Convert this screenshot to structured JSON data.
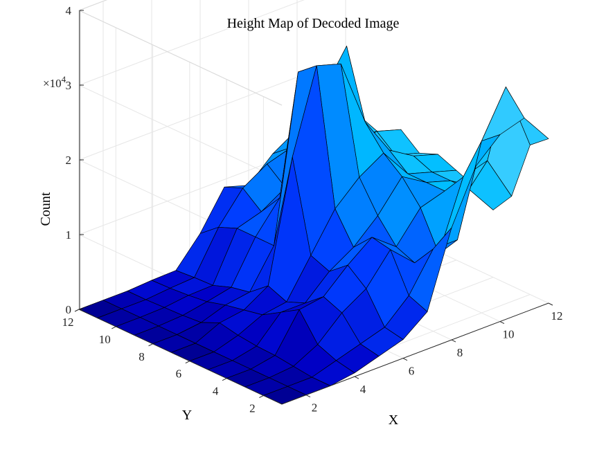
{
  "chart_data": {
    "type": "surface",
    "title": "Height Map of Decoded Image",
    "xlabel": "X",
    "ylabel": "Y",
    "zlabel": "Count",
    "z_exponent_base": "×10",
    "z_exponent": "4",
    "xlim": [
      1,
      12
    ],
    "ylim": [
      1,
      12
    ],
    "zlim": [
      0,
      40000
    ],
    "x_ticks": [
      "2",
      "4",
      "6",
      "8",
      "10",
      "12"
    ],
    "y_ticks": [
      "2",
      "4",
      "6",
      "8",
      "10",
      "12"
    ],
    "z_ticks": [
      "0",
      "1",
      "2",
      "3",
      "4"
    ],
    "grid": true,
    "colormap": "blue-cyan",
    "x": [
      1,
      2,
      3,
      4,
      5,
      6,
      7,
      8,
      9,
      10,
      11,
      12
    ],
    "y": [
      1,
      2,
      3,
      4,
      5,
      6,
      7,
      8,
      9,
      10,
      11,
      12
    ],
    "z": [
      [
        0,
        0,
        0,
        500,
        1500,
        2500,
        5000,
        15000,
        22000,
        25000,
        26000,
        22000
      ],
      [
        0,
        0,
        0,
        1000,
        2000,
        3000,
        6000,
        11000,
        11000,
        23000,
        29000,
        20000
      ],
      [
        0,
        0,
        300,
        2000,
        5000,
        7000,
        11000,
        8000,
        8000,
        17000,
        18000,
        12000
      ],
      [
        0,
        0,
        600,
        5500,
        6000,
        9000,
        11500,
        9000,
        13000,
        14000,
        13000,
        9000
      ],
      [
        0,
        0,
        700,
        4000,
        4000,
        7000,
        9000,
        12000,
        16000,
        14000,
        13000,
        11000
      ],
      [
        0,
        0,
        1000,
        2500,
        3000,
        8000,
        13000,
        16000,
        18000,
        14000,
        13000,
        12000
      ],
      [
        0,
        0,
        1500,
        2000,
        4000,
        20000,
        31000,
        30000,
        21000,
        16000,
        14000,
        13000
      ],
      [
        0,
        0,
        400,
        1500,
        2000,
        7000,
        29000,
        25000,
        30000,
        14000,
        13000,
        12000
      ],
      [
        0,
        0,
        200,
        800,
        1500,
        7000,
        11000,
        12000,
        13000,
        14000,
        15000,
        14000
      ],
      [
        0,
        0,
        100,
        500,
        600,
        7000,
        8000,
        10000,
        11000,
        12000,
        13000,
        12000
      ],
      [
        0,
        0,
        0,
        300,
        500,
        6000,
        10000,
        12000,
        13000,
        15000,
        16000,
        13000
      ],
      [
        0,
        0,
        0,
        200,
        300,
        4000,
        9000,
        8000,
        11000,
        13000,
        17000,
        15000
      ]
    ]
  }
}
